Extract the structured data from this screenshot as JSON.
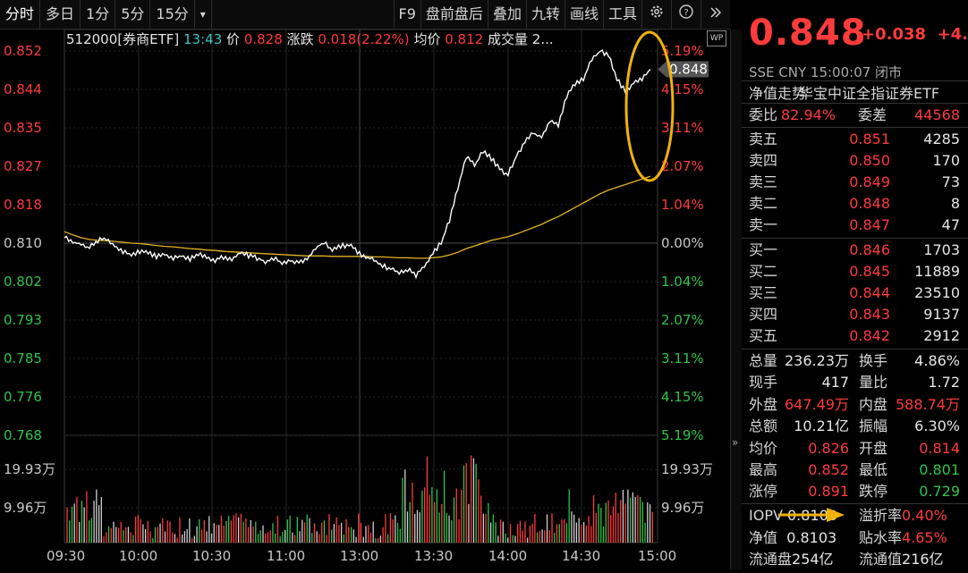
{
  "toolbar": {
    "tabs": [
      "分时",
      "多日",
      "1分",
      "5分",
      "15分"
    ],
    "dropdown": "▾",
    "right": [
      "F9",
      "盘前盘后",
      "叠加",
      "九转",
      "画线",
      "工具"
    ]
  },
  "info": {
    "code_name": "512000[券商ETF]",
    "time": "13:43",
    "price_label": "价",
    "price": "0.828",
    "change_label": "涨跌",
    "change": "0.018(2.22%)",
    "avg_label": "均价",
    "avg": "0.812",
    "vol_label": "成交量",
    "vol": "2..."
  },
  "wp_badge": "WP",
  "chart_data": {
    "type": "line",
    "price_ticks": [
      "0.852",
      "0.844",
      "0.835",
      "0.827",
      "0.818",
      "0.810",
      "0.802",
      "0.793",
      "0.785",
      "0.776",
      "0.768"
    ],
    "pct_ticks": [
      "5.19%",
      "4.15%",
      "3.11%",
      "2.07%",
      "1.04%",
      "0.00%",
      "1.04%",
      "2.07%",
      "3.11%",
      "4.15%",
      "5.19%"
    ],
    "vol_ticks": [
      "19.93万",
      "9.96万"
    ],
    "time_ticks": [
      "09:30",
      "10:00",
      "10:30",
      "11:00",
      "13:00",
      "13:30",
      "14:00",
      "14:30",
      "15:00"
    ],
    "ylim": [
      0.768,
      0.852
    ],
    "prev_close": 0.81,
    "last_price_label": "0.848",
    "price": [
      0.8115,
      0.8102,
      0.8098,
      0.809,
      0.8105,
      0.8112,
      0.8095,
      0.808,
      0.8075,
      0.8082,
      0.8078,
      0.807,
      0.8074,
      0.8068,
      0.8072,
      0.8065,
      0.8078,
      0.807,
      0.8062,
      0.807,
      0.8065,
      0.808,
      0.8072,
      0.8068,
      0.806,
      0.8068,
      0.8055,
      0.8062,
      0.8058,
      0.8065,
      0.809,
      0.81,
      0.8085,
      0.8092,
      0.8098,
      0.808,
      0.807,
      0.8062,
      0.805,
      0.8045,
      0.8035,
      0.8042,
      0.803,
      0.8048,
      0.808,
      0.81,
      0.815,
      0.822,
      0.829,
      0.827,
      0.83,
      0.8285,
      0.8262,
      0.825,
      0.829,
      0.832,
      0.834,
      0.833,
      0.837,
      0.836,
      0.842,
      0.845,
      0.846,
      0.85,
      0.852,
      0.851,
      0.846,
      0.843,
      0.845,
      0.846,
      0.848
    ],
    "avg": [
      0.8125,
      0.8118,
      0.8112,
      0.8108,
      0.8106,
      0.8105,
      0.8104,
      0.8102,
      0.81,
      0.8099,
      0.8097,
      0.8095,
      0.8093,
      0.8092,
      0.809,
      0.8088,
      0.8087,
      0.8085,
      0.8084,
      0.8082,
      0.8081,
      0.808,
      0.8079,
      0.8078,
      0.8077,
      0.8076,
      0.8075,
      0.8074,
      0.8073,
      0.8072,
      0.8072,
      0.8072,
      0.8071,
      0.8071,
      0.8071,
      0.8071,
      0.8071,
      0.807,
      0.807,
      0.8069,
      0.8068,
      0.8068,
      0.8067,
      0.8067,
      0.8068,
      0.807,
      0.8074,
      0.808,
      0.8088,
      0.8094,
      0.81,
      0.8106,
      0.811,
      0.8114,
      0.812,
      0.8127,
      0.8134,
      0.8141,
      0.815,
      0.8158,
      0.8168,
      0.8178,
      0.8188,
      0.8198,
      0.8208,
      0.8216,
      0.8222,
      0.8228,
      0.8234,
      0.824,
      0.8246
    ]
  },
  "quote": {
    "price": "0.848",
    "change": "+0.038",
    "pct": "+4.",
    "meta": "SSE CNY 15:00:07 闭市",
    "nav_label": "净值走势",
    "name": "华宝中证全指证券ETF",
    "webi_label": "委比",
    "webi": "82.94%",
    "weicha_label": "委差",
    "weicha": "44568",
    "asks": [
      {
        "label": "卖五",
        "price": "0.851",
        "vol": "4285"
      },
      {
        "label": "卖四",
        "price": "0.850",
        "vol": "170"
      },
      {
        "label": "卖三",
        "price": "0.849",
        "vol": "73"
      },
      {
        "label": "卖二",
        "price": "0.848",
        "vol": "8"
      },
      {
        "label": "卖一",
        "price": "0.847",
        "vol": "47"
      }
    ],
    "bids": [
      {
        "label": "买一",
        "price": "0.846",
        "vol": "1703"
      },
      {
        "label": "买二",
        "price": "0.845",
        "vol": "11889"
      },
      {
        "label": "买三",
        "price": "0.844",
        "vol": "23510"
      },
      {
        "label": "买四",
        "price": "0.843",
        "vol": "9137"
      },
      {
        "label": "买五",
        "price": "0.842",
        "vol": "2912"
      }
    ],
    "stats": [
      [
        "总量",
        "236.23万",
        "换手",
        "4.86%"
      ],
      [
        "现手",
        "417",
        "量比",
        "1.72"
      ],
      [
        "外盘",
        "647.49万",
        "内盘",
        "588.74万"
      ],
      [
        "总额",
        "10.21亿",
        "振幅",
        "6.30%"
      ],
      [
        "均价",
        "0.826",
        "开盘",
        "0.814"
      ],
      [
        "最高",
        "0.852",
        "最低",
        "0.801"
      ],
      [
        "涨停",
        "0.891",
        "跌停",
        "0.729"
      ]
    ],
    "iopv_label": "IOPV",
    "iopv": "0.8103",
    "premium_label": "溢折率",
    "premium": "0.40%",
    "nav2_label": "净值",
    "nav2": "0.8103",
    "tie_label": "贴水率",
    "tie": "4.65%",
    "float_label": "流通盘",
    "float": "254亿",
    "float_val_label": "流通值",
    "float_val": "216亿"
  },
  "colors": {
    "up": "#ff3b3b",
    "down": "#2ec44b",
    "avg": "#e6b422",
    "annotation": "#f0b20a"
  }
}
